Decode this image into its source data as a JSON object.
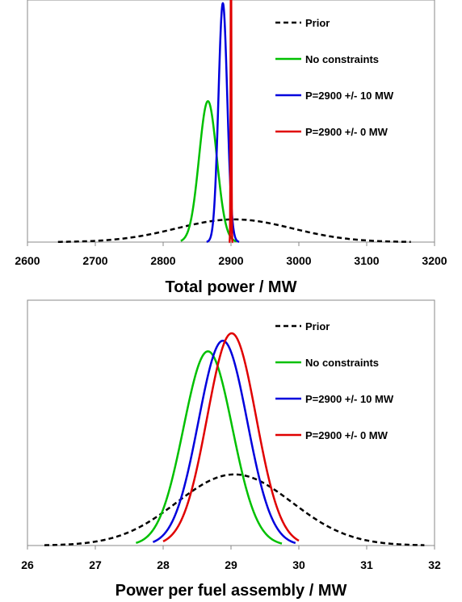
{
  "chart_data": [
    {
      "type": "line",
      "title": "",
      "xlabel": "Total power / MW",
      "ylabel": "",
      "xlim": [
        2600,
        3200
      ],
      "xticks": [
        2600,
        2700,
        2800,
        2900,
        3000,
        3100,
        3200
      ],
      "grid": false,
      "legend_position": "top-right",
      "series": [
        {
          "name": "Prior",
          "color": "#000000",
          "dash": true,
          "mean": 2905,
          "sd": 85,
          "peak": 0.095,
          "xmin": 2645,
          "xmax": 3165
        },
        {
          "name": "No constraints",
          "color": "#00c000",
          "dash": false,
          "mean": 2866,
          "sd": 13,
          "peak": 0.59,
          "xmin": 2826,
          "xmax": 2908
        },
        {
          "name": "P=2900 +/- 10  MW",
          "color": "#0000dd",
          "dash": false,
          "mean": 2888,
          "sd": 6.5,
          "peak": 1.0,
          "xmin": 2864,
          "xmax": 2912
        },
        {
          "name": "P=2900 +/- 0  MW",
          "color": "#e00000",
          "dash": false,
          "mean": 2900,
          "sd": 0.6,
          "peak": 1.2,
          "xmin": 2897,
          "xmax": 2903
        }
      ]
    },
    {
      "type": "line",
      "title": "",
      "xlabel": "Power per fuel assembly / MW",
      "ylabel": "",
      "xlim": [
        26,
        32
      ],
      "xticks": [
        26,
        27,
        28,
        29,
        30,
        31,
        32
      ],
      "grid": false,
      "legend_position": "top-right",
      "series": [
        {
          "name": "Prior",
          "color": "#000000",
          "dash": true,
          "mean": 29.05,
          "sd": 0.85,
          "peak": 0.335,
          "xmin": 26.25,
          "xmax": 31.85
        },
        {
          "name": "No constraints",
          "color": "#00c000",
          "dash": false,
          "mean": 28.66,
          "sd": 0.36,
          "peak": 0.915,
          "xmin": 27.6,
          "xmax": 29.75
        },
        {
          "name": "P=2900 +/- 10  MW",
          "color": "#0000dd",
          "dash": false,
          "mean": 28.88,
          "sd": 0.36,
          "peak": 0.965,
          "xmin": 27.85,
          "xmax": 29.95
        },
        {
          "name": "P=2900 +/- 0  MW",
          "color": "#e00000",
          "dash": false,
          "mean": 29.01,
          "sd": 0.36,
          "peak": 1.0,
          "xmin": 28.0,
          "xmax": 30.0
        }
      ]
    }
  ]
}
